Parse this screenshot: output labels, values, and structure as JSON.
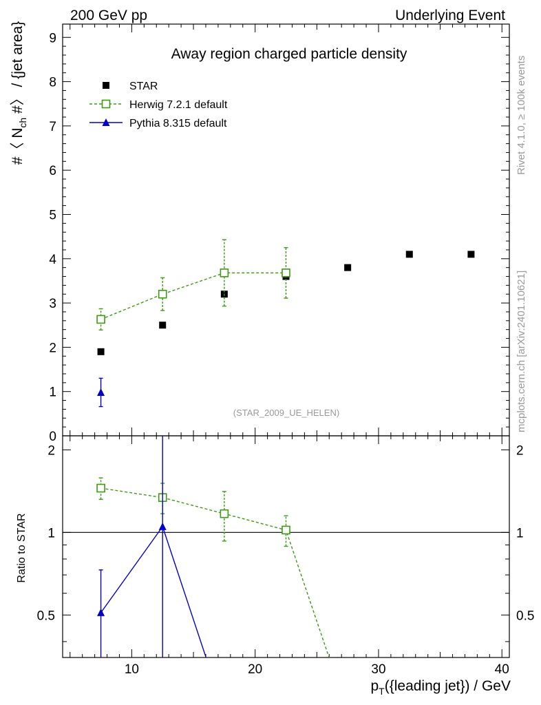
{
  "header": {
    "left": "200 GeV pp",
    "right": "Underlying Event"
  },
  "side_text": {
    "rivet": "Rivet 4.1.0, ≥ 100k events",
    "mcplots": "mcplots.cern.ch [arXiv:2401.10621]"
  },
  "colors": {
    "star": "#000000",
    "herwig": "#3a9a12",
    "pythia": "#0000cc",
    "watermark": "#999999"
  },
  "chart_data": [
    {
      "type": "scatter",
      "panel": "main",
      "title": "Away region charged particle density",
      "ylabel_parts": [
        "#〈 N",
        "ch",
        " #〉 / {jet area}"
      ],
      "xlim": [
        4.4,
        40.6
      ],
      "ylim": [
        0,
        9.3
      ],
      "yticks": [
        0,
        1,
        2,
        3,
        4,
        5,
        6,
        7,
        8,
        9
      ],
      "watermark": "(STAR_2009_UE_HELEN)",
      "legend": {
        "position": "top-left",
        "entries": [
          {
            "key": "star",
            "label": "STAR"
          },
          {
            "key": "herwig",
            "label": "Herwig 7.2.1 default"
          },
          {
            "key": "pythia",
            "label": "Pythia 8.315 default"
          }
        ]
      },
      "series": [
        {
          "key": "star",
          "name": "STAR",
          "marker": "square-filled",
          "line": "none",
          "x": [
            7.5,
            12.5,
            17.5,
            22.5,
            27.5,
            32.5,
            37.5
          ],
          "y": [
            1.9,
            2.5,
            3.2,
            3.6,
            3.8,
            4.1,
            4.1
          ],
          "err": [
            0,
            0,
            0,
            0,
            0,
            0,
            0
          ]
        },
        {
          "key": "herwig",
          "name": "Herwig 7.2.1 default",
          "marker": "square-open",
          "line": "dashed",
          "x": [
            7.5,
            12.5,
            17.5,
            22.5
          ],
          "y": [
            2.63,
            3.2,
            3.68,
            3.68
          ],
          "err": [
            0.24,
            0.37,
            0.75,
            0.57
          ]
        },
        {
          "key": "pythia",
          "name": "Pythia 8.315 default",
          "marker": "triangle-filled",
          "line": "solid",
          "x": [
            7.5
          ],
          "y": [
            0.98
          ],
          "err": [
            0.32
          ]
        }
      ]
    },
    {
      "type": "line",
      "panel": "ratio",
      "ylabel": "Ratio to STAR",
      "xlabel_parts": [
        "p",
        "T",
        "({leading jet}) / GeV"
      ],
      "xlim": [
        4.4,
        40.6
      ],
      "xticks": [
        10,
        20,
        30,
        40
      ],
      "ylim": [
        0.35,
        2.25
      ],
      "yticks": [
        0.5,
        1,
        2
      ],
      "ytick_labels": [
        "0.5",
        "1",
        "2"
      ],
      "reference_line": 1,
      "series": [
        {
          "key": "herwig",
          "name": "Herwig 7.2.1 default",
          "marker": "square-open",
          "line": "dashed",
          "x": [
            7.5,
            12.5,
            17.5,
            22.5,
            27.5
          ],
          "y": [
            1.45,
            1.34,
            1.17,
            1.02,
            0.0
          ],
          "err": [
            0.13,
            0.17,
            0.24,
            0.13,
            0
          ],
          "hide_marker": [
            false,
            false,
            false,
            false,
            true
          ]
        },
        {
          "key": "pythia",
          "name": "Pythia 8.315 default",
          "marker": "triangle-filled",
          "line": "solid",
          "x": [
            7.5,
            12.5,
            17.5
          ],
          "y": [
            0.51,
            1.05,
            0.0
          ],
          "err": [
            0.22,
            1.5,
            0
          ],
          "hide_marker": [
            false,
            false,
            true
          ]
        }
      ]
    }
  ]
}
